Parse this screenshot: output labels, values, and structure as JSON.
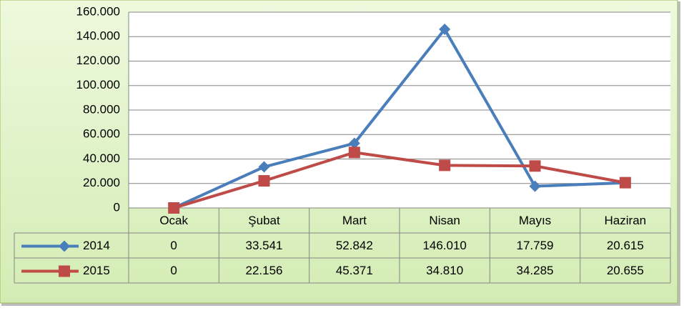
{
  "chart_data": {
    "type": "line",
    "categories": [
      "Ocak",
      "Şubat",
      "Mart",
      "Nisan",
      "Mayıs",
      "Haziran"
    ],
    "series": [
      {
        "name": "2014",
        "color": "#4a7ebb",
        "marker": "diamond",
        "values": [
          0,
          33541,
          52842,
          146010,
          17759,
          20615
        ],
        "value_labels": [
          "0",
          "33.541",
          "52.842",
          "146.010",
          "17.759",
          "20.615"
        ]
      },
      {
        "name": "2015",
        "color": "#be4b48",
        "marker": "square",
        "values": [
          0,
          22156,
          45371,
          34810,
          34285,
          20655
        ],
        "value_labels": [
          "0",
          "22.156",
          "45.371",
          "34.810",
          "34.285",
          "20.655"
        ]
      }
    ],
    "ylim": [
      0,
      160000
    ],
    "yticks": [
      0,
      {
        "value": 20000,
        "label": "20.000"
      },
      {
        "value": 40000,
        "label": "40.000"
      },
      {
        "value": 60000,
        "label": "60.000"
      },
      {
        "value": 80000,
        "label": "80.000"
      },
      {
        "value": 100000,
        "label": "100.000"
      },
      {
        "value": 120000,
        "label": "120.000"
      },
      {
        "value": 140000,
        "label": "140.000"
      },
      {
        "value": 160000,
        "label": "160.000"
      }
    ],
    "grid": true,
    "data_table": true
  }
}
